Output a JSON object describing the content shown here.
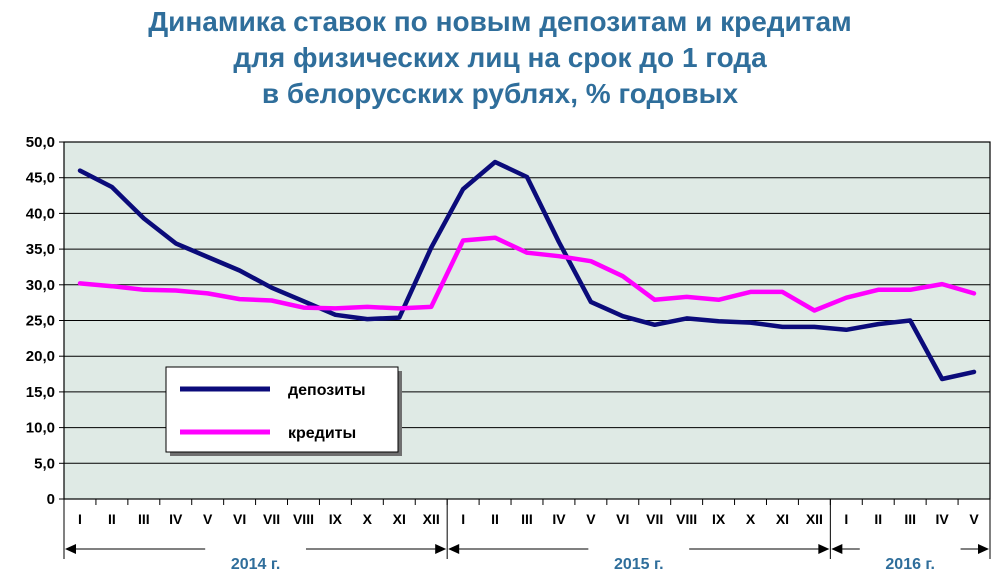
{
  "title_lines": [
    "Динамика ставок по новым депозитам и кредитам",
    "для физических лиц на срок до 1 года",
    "в белорусских рублях, % годовых"
  ],
  "colors": {
    "title": "#2f6e9b",
    "plot_background": "#dfeae5",
    "deposits": "#0b0b7a",
    "credits": "#ff00ff",
    "year_label": "#2f6e9b"
  },
  "chart_data": {
    "type": "line",
    "title": "Динамика ставок по новым депозитам и кредитам для физических лиц на срок до 1 года в белорусских рублях, % годовых",
    "categories": [
      "I",
      "II",
      "III",
      "IV",
      "V",
      "VI",
      "VII",
      "VIII",
      "IX",
      "X",
      "XI",
      "XII",
      "I",
      "II",
      "III",
      "IV",
      "V",
      "VI",
      "VII",
      "VIII",
      "IX",
      "X",
      "XI",
      "XII",
      "I",
      "II",
      "III",
      "IV",
      "V"
    ],
    "year_groups": [
      {
        "label": "2014 г.",
        "start": 0,
        "end": 11
      },
      {
        "label": "2015 г.",
        "start": 12,
        "end": 23
      },
      {
        "label": "2016 г.",
        "start": 24,
        "end": 28
      }
    ],
    "ylim": [
      0,
      50
    ],
    "yticks": [
      "0",
      "5,0",
      "10,0",
      "15,0",
      "20,0",
      "25,0",
      "30,0",
      "35,0",
      "40,0",
      "45,0",
      "50,0"
    ],
    "grid": true,
    "legend_position": "lower-left",
    "series": [
      {
        "name": "депозиты",
        "color": "#0b0b7a",
        "values": [
          46.0,
          43.7,
          39.3,
          35.8,
          33.9,
          32.0,
          29.6,
          27.7,
          25.8,
          25.2,
          25.4,
          35.2,
          43.4,
          47.2,
          45.1,
          36.0,
          27.6,
          25.6,
          24.4,
          25.3,
          24.9,
          24.7,
          24.1,
          24.1,
          23.7,
          24.5,
          25.0,
          16.8,
          17.8
        ]
      },
      {
        "name": "кредиты",
        "color": "#ff00ff",
        "values": [
          30.2,
          29.8,
          29.3,
          29.2,
          28.8,
          28.0,
          27.8,
          26.8,
          26.7,
          26.9,
          26.7,
          26.9,
          36.2,
          36.6,
          34.5,
          34.0,
          33.3,
          31.2,
          27.9,
          28.3,
          27.9,
          29.0,
          29.0,
          26.4,
          28.2,
          29.3,
          29.3,
          30.1,
          28.8
        ]
      }
    ]
  }
}
